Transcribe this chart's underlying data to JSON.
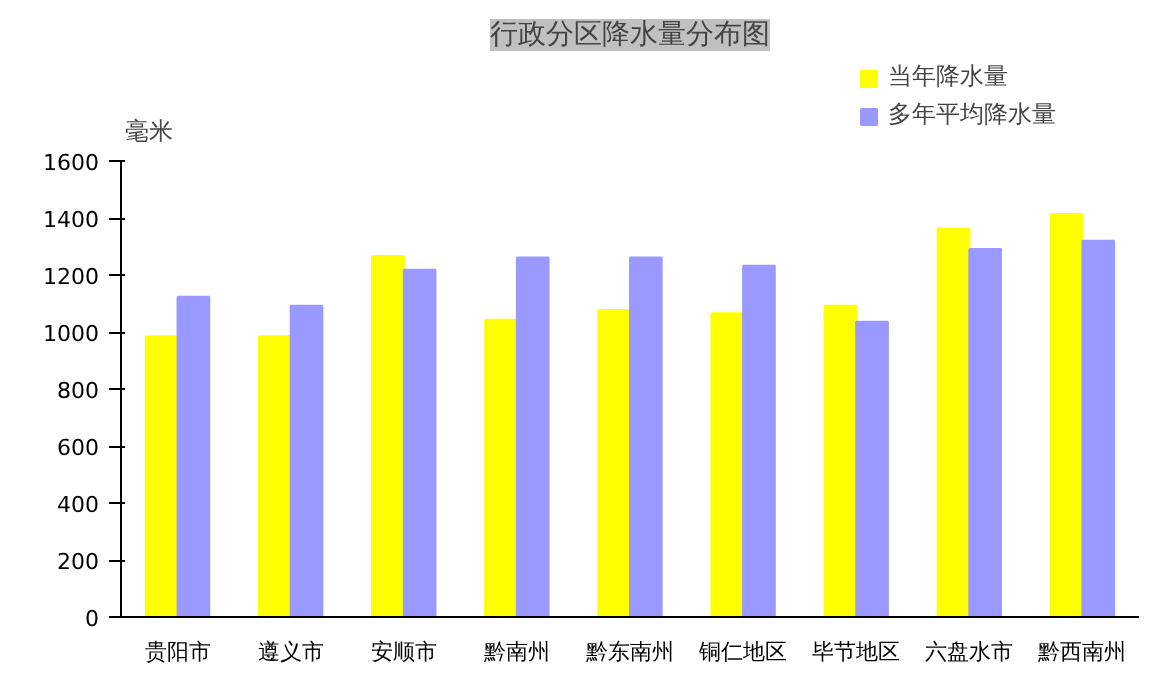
{
  "chart_data": {
    "type": "bar",
    "title": "行政分区降水量分布图",
    "ylabel": "毫米",
    "categories": [
      "贵阳市",
      "遵义市",
      "安顺市",
      "黔南州",
      "黔东南州",
      "铜仁地区",
      "毕节地区",
      "六盘水市",
      "黔西南州"
    ],
    "series": [
      {
        "name": "当年降水量",
        "color": "#ffff00",
        "values": [
          986,
          986,
          1267,
          1044,
          1078,
          1066,
          1093,
          1364,
          1415
        ]
      },
      {
        "name": "多年平均降水量",
        "color": "#9999ff",
        "values": [
          1124,
          1093,
          1219,
          1262,
          1262,
          1233,
          1037,
          1292,
          1321
        ]
      }
    ],
    "ylim": [
      0,
      1600
    ],
    "yticks": [
      0,
      200,
      400,
      600,
      800,
      1000,
      1200,
      1400,
      1600
    ],
    "grid": false,
    "legend": "top right"
  }
}
